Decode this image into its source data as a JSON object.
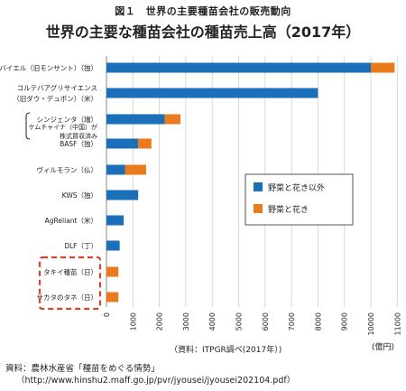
{
  "figure_caption": "図１　世界の主要種苗会社の販売動向",
  "source": {
    "line1": "資料：農林水産省「種苗をめぐる情勢」",
    "line2": "（http://www.hinshu2.maff.go.jp/pvr/jyousei/jyousei202104.pdf）"
  },
  "colors": {
    "series1": "#1a6fb8",
    "series2": "#ea7a1e",
    "highlight": "#d9412f"
  },
  "chart_data": {
    "type": "bar",
    "orientation": "horizontal",
    "stacked": true,
    "title": "世界の主要な種苗会社の種苗売上高（2017年）",
    "note": "（資料：ITPGR調べ(2017年）)",
    "unit": "(億円)",
    "xlim": [
      0,
      11000
    ],
    "ticks": [
      0,
      1000,
      2000,
      3000,
      4000,
      5000,
      6000,
      7000,
      8000,
      9000,
      10000,
      11000
    ],
    "companies": [
      {
        "lines": [
          "バイエル（旧モンサント）（独）"
        ],
        "values": [
          10000,
          900
        ]
      },
      {
        "lines": [
          "コルテバアグリサイエンス",
          "（旧ダウ・デュポン）（米）"
        ],
        "values": [
          8000,
          0
        ]
      },
      {
        "lines": [
          "シンジェンタ（瑞）"
        ],
        "values": [
          2200,
          600
        ]
      },
      {
        "lines": [
          "BASF（独）"
        ],
        "values": [
          1200,
          500
        ]
      },
      {
        "lines": [
          "ヴィルモラン（仏）"
        ],
        "values": [
          700,
          800
        ]
      },
      {
        "lines": [
          "KWS（独）"
        ],
        "values": [
          1200,
          0
        ]
      },
      {
        "lines": [
          "AgReliant（米）"
        ],
        "values": [
          650,
          0
        ]
      },
      {
        "lines": [
          "DLF（丁）"
        ],
        "values": [
          500,
          0
        ]
      },
      {
        "lines": [
          "タキイ種苗（日）"
        ],
        "values": [
          0,
          450
        ]
      },
      {
        "lines": [
          "サカタのタネ（日）"
        ],
        "values": [
          0,
          450
        ]
      }
    ],
    "series": [
      {
        "name": "野菜と花き以外"
      },
      {
        "name": "野菜と花き"
      }
    ],
    "annotation": [
      "ケムチャイナ（中国）が",
      "株式買収済み"
    ],
    "highlighted": [
      "タキイ種苗（日）",
      "サカタのタネ（日）"
    ]
  }
}
